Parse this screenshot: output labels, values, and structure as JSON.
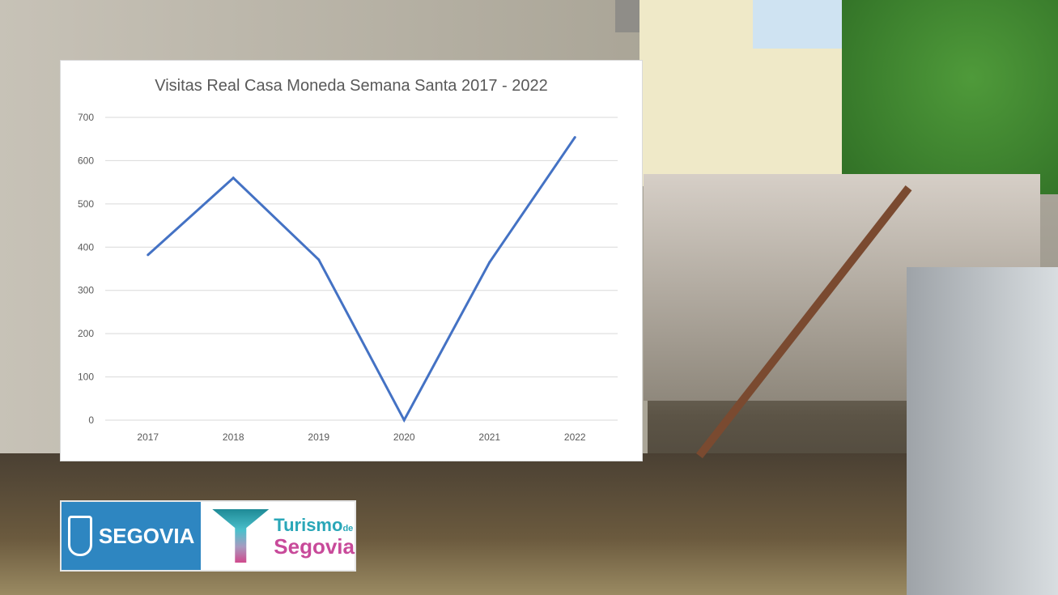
{
  "chart_data": {
    "type": "line",
    "title": "Visitas Real Casa Moneda Semana Santa 2017 - 2022",
    "categories": [
      "2017",
      "2018",
      "2019",
      "2020",
      "2021",
      "2022"
    ],
    "series": [
      {
        "values": [
          382,
          560,
          371,
          0,
          365,
          654
        ]
      }
    ],
    "yticks": [
      "0",
      "100",
      "200",
      "300",
      "400",
      "500",
      "600",
      "700"
    ],
    "ylim": [
      0,
      700
    ],
    "grid": true,
    "line_color": "#4472c4"
  },
  "logos": {
    "city": "SEGOVIA",
    "tourism_line1": "Turismo",
    "tourism_de": "de",
    "tourism_line2": "Segovia",
    "city_color": "#2e86c1",
    "tourism_colors": [
      "#2aa7b8",
      "#c84a9a"
    ]
  }
}
